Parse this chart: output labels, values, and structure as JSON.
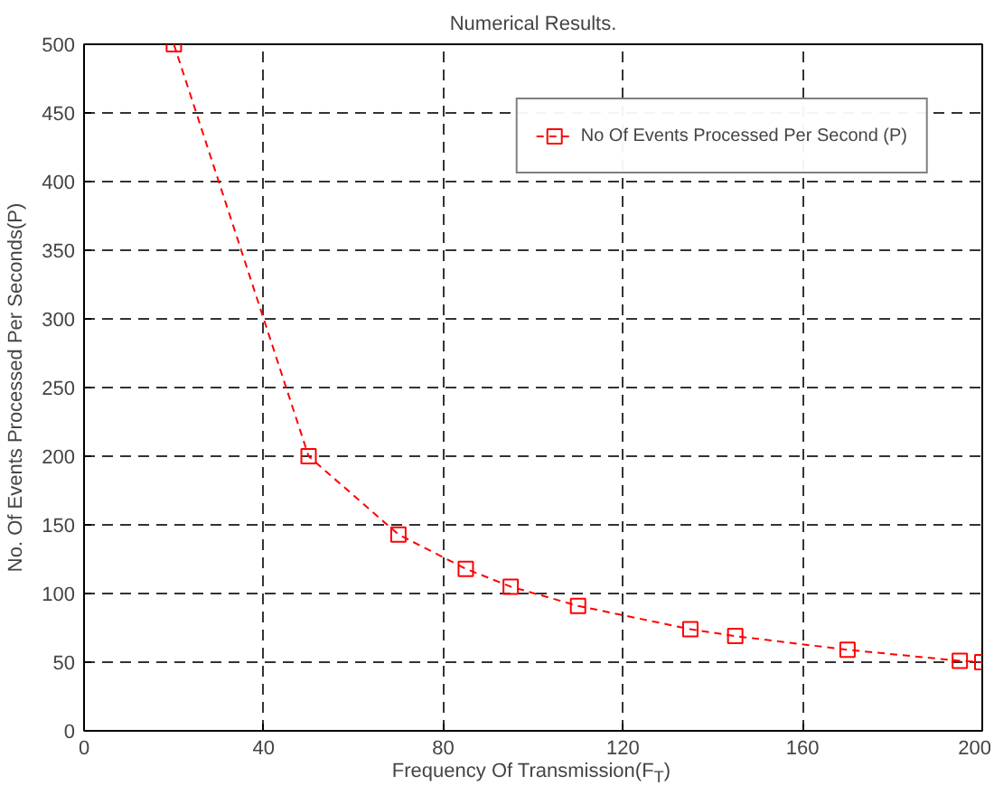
{
  "chart_data": {
    "type": "line",
    "title": "Numerical Results.",
    "xlabel": "Frequency Of Transmission(F$_{T}$)",
    "ylabel": "No. Of Events Processed Per Seconds(P)",
    "x": [
      20,
      50,
      70,
      85,
      95,
      110,
      135,
      145,
      170,
      195,
      200
    ],
    "series": [
      {
        "name": "No Of Events Processed Per Second (P)",
        "color": "#ff0000",
        "values": [
          500,
          200,
          143,
          118,
          105,
          91,
          74,
          69,
          59,
          51,
          50
        ]
      }
    ],
    "xlim": [
      0,
      200
    ],
    "ylim": [
      0,
      500
    ],
    "xticks": [
      0,
      40,
      80,
      120,
      160,
      200
    ],
    "yticks": [
      0,
      50,
      100,
      150,
      200,
      250,
      300,
      350,
      400,
      450,
      500
    ],
    "grid": true,
    "legend": "top right",
    "marker": "square",
    "line_style": "dashed"
  }
}
